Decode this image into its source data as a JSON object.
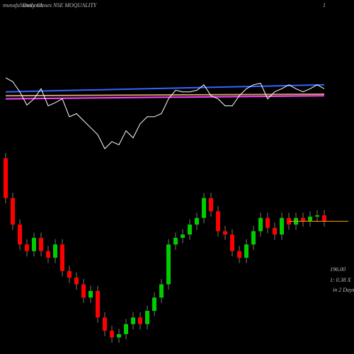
{
  "chart_data": [
    {
      "type": "candlestick",
      "site": "munafaSutra.com",
      "title": "Daily Closes NSE MOQUALITY",
      "corner": "1",
      "price_label": "196.00",
      "volume_label": "1: 0.38 X",
      "period_label": "in 2 Days",
      "up_color": "#00cc00",
      "down_color": "#ff0000",
      "last_color": "#ff9900",
      "ylim": [
        176,
        208
      ],
      "open": [
        205.5,
        199.5,
        195.5,
        192.5,
        191.5,
        193.5,
        191.5,
        190.5,
        192.5,
        188.5,
        187.5,
        186.5,
        184.5,
        185.5,
        181.5,
        179.5,
        178.5,
        179.0,
        180.5,
        181.5,
        180.5,
        182.5,
        184.5,
        186.5,
        192.5,
        193.5,
        194.0,
        195.5,
        196.5,
        199.5,
        197.5,
        194.5,
        194.0,
        191.5,
        190.5,
        192.5,
        194.5,
        196.5,
        195.0,
        194.0,
        196.5,
        195.5,
        196.5,
        196.0,
        196.7,
        196.9
      ],
      "high": [
        206.3,
        200.3,
        196.3,
        193.3,
        194.3,
        194.3,
        192.3,
        193.3,
        193.3,
        189.3,
        188.3,
        187.3,
        186.3,
        186.3,
        182.3,
        180.3,
        179.8,
        181.3,
        182.3,
        182.3,
        183.3,
        185.3,
        187.3,
        193.3,
        194.3,
        194.8,
        196.3,
        197.3,
        200.3,
        200.3,
        198.3,
        195.3,
        194.8,
        192.3,
        193.3,
        195.3,
        197.3,
        197.3,
        195.8,
        197.3,
        197.3,
        197.3,
        197.3,
        197.5,
        197.7,
        197.7
      ],
      "low": [
        198.7,
        194.7,
        191.7,
        190.7,
        190.7,
        190.7,
        189.7,
        189.7,
        187.7,
        186.7,
        185.7,
        183.7,
        183.7,
        180.7,
        178.7,
        177.7,
        177.7,
        178.2,
        179.7,
        179.7,
        179.7,
        181.7,
        183.7,
        185.7,
        191.7,
        192.7,
        193.2,
        194.7,
        195.7,
        196.7,
        193.7,
        193.2,
        190.7,
        189.7,
        189.7,
        191.7,
        193.7,
        194.2,
        193.2,
        193.2,
        194.7,
        194.7,
        195.2,
        195.2,
        195.9,
        195.2
      ],
      "close": [
        199.5,
        195.5,
        192.5,
        191.5,
        193.5,
        191.5,
        190.5,
        192.5,
        188.5,
        187.5,
        186.5,
        184.5,
        185.5,
        181.5,
        179.5,
        178.5,
        179.0,
        180.5,
        181.5,
        180.5,
        182.5,
        184.5,
        186.5,
        192.5,
        193.5,
        194.0,
        195.5,
        196.5,
        199.5,
        197.5,
        194.5,
        194.0,
        191.5,
        190.5,
        192.5,
        194.5,
        196.5,
        195.0,
        194.0,
        196.5,
        195.5,
        196.5,
        196.0,
        196.7,
        196.9,
        196.0
      ]
    },
    {
      "type": "line",
      "ylim": [
        0,
        100
      ],
      "series": [
        {
          "color": "#3366ff",
          "x": [
            0,
            45
          ],
          "values": [
            73,
            82
          ]
        },
        {
          "color": "#cc9966",
          "x": [
            0,
            45
          ],
          "values": [
            68,
            70
          ]
        },
        {
          "color": "#ff44ff",
          "x": [
            0,
            45
          ],
          "values": [
            64,
            68
          ]
        },
        {
          "color": "#ffffff",
          "x": [
            0,
            1,
            2,
            3,
            4,
            5,
            6,
            7,
            8,
            9,
            10,
            11,
            12,
            13,
            14,
            15,
            16,
            17,
            18,
            19,
            20,
            21,
            22,
            23,
            24,
            25,
            26,
            27,
            28,
            29,
            30,
            31,
            32,
            33,
            34,
            35,
            36,
            37,
            38,
            39,
            40,
            41,
            42,
            43,
            44,
            45
          ],
          "values": [
            91,
            86,
            73,
            56,
            64,
            77,
            55,
            59,
            64,
            41,
            45,
            36,
            27,
            18,
            0,
            9,
            5,
            23,
            14,
            32,
            41,
            41,
            45,
            64,
            75,
            73,
            73,
            75,
            82,
            68,
            64,
            55,
            55,
            68,
            77,
            82,
            84,
            64,
            73,
            77,
            82,
            77,
            73,
            77,
            82,
            77
          ]
        }
      ]
    }
  ]
}
